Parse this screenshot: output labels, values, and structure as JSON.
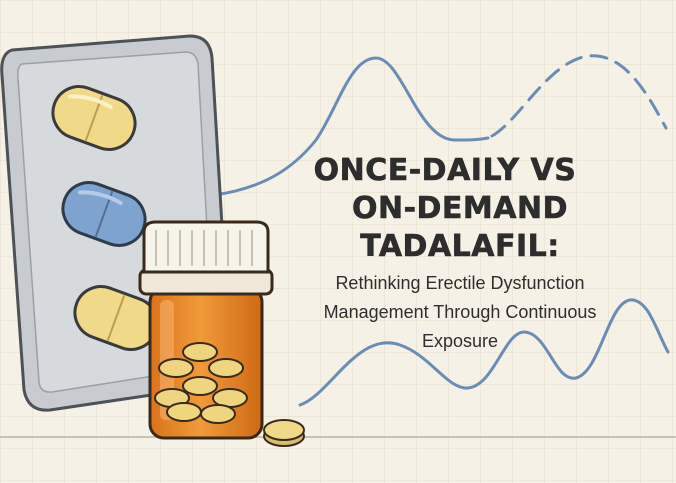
{
  "title": {
    "line1": "ONCE-DAILY VS",
    "line2": "ON-DEMAND TADALAFIL:"
  },
  "subtitle": {
    "line1": "Rethinking Erectile Dysfunction",
    "line2": "Management Through Continuous",
    "line3": "Exposure"
  },
  "colors": {
    "background": "#f6f1e6",
    "wave": "#6b8db3",
    "pill_yellow": "#f1d98a",
    "pill_blue": "#7fa3cf",
    "bottle_amber": "#e58a2a",
    "cap": "#f7f4ec",
    "text": "#2d2d2d"
  },
  "icons": [
    "blister-pack-icon",
    "pill-bottle-icon",
    "tablet-icon",
    "wave-curve-icon"
  ]
}
